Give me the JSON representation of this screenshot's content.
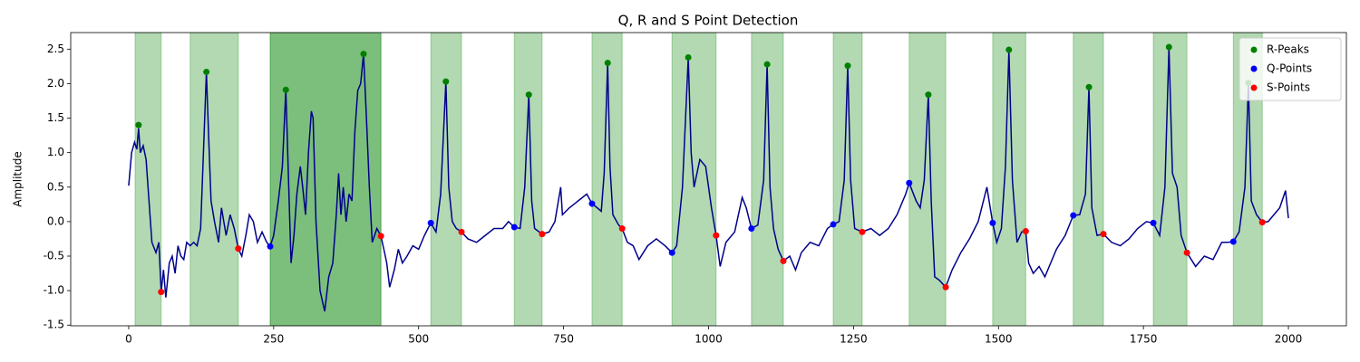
{
  "chart_data": {
    "type": "line",
    "title": "Q, R and S Point Detection",
    "y_label": "Amplitude",
    "xlim": [
      -100,
      2100
    ],
    "ylim": [
      -1.51,
      2.74
    ],
    "xticks": [
      0,
      250,
      500,
      750,
      1000,
      1250,
      1500,
      1750,
      2000
    ],
    "yticks": [
      -1.5,
      {
        "value": -1.0,
        "label": "-1.0"
      },
      -0.5,
      {
        "value": 0.0,
        "label": "0.0"
      },
      0.5,
      {
        "value": 1.0,
        "label": "1.0"
      },
      1.5,
      {
        "value": 2.0,
        "label": "2.0"
      },
      2.5
    ],
    "color": "#00008b",
    "x": [
      0,
      5,
      10,
      14,
      17,
      20,
      25,
      30,
      35,
      40,
      47,
      52,
      56,
      60,
      64,
      70,
      75,
      80,
      85,
      90,
      95,
      100,
      106,
      112,
      118,
      124,
      128,
      134,
      138,
      142,
      148,
      155,
      160,
      168,
      175,
      182,
      189,
      195,
      202,
      208,
      215,
      222,
      230,
      238,
      244,
      250,
      258,
      265,
      271,
      276,
      280,
      285,
      290,
      296,
      300,
      305,
      310,
      315,
      318,
      323,
      330,
      338,
      345,
      352,
      358,
      362,
      366,
      370,
      375,
      380,
      385,
      390,
      395,
      400,
      405,
      410,
      415,
      420,
      428,
      435,
      440,
      445,
      450,
      458,
      465,
      472,
      480,
      490,
      500,
      510,
      521,
      530,
      538,
      547,
      552,
      558,
      565,
      574,
      585,
      600,
      615,
      630,
      645,
      655,
      665,
      675,
      683,
      690,
      695,
      700,
      713,
      725,
      735,
      745,
      748,
      760,
      775,
      790,
      799,
      808,
      815,
      820,
      826,
      830,
      835,
      845,
      851,
      860,
      870,
      880,
      895,
      910,
      925,
      937,
      945,
      955,
      965,
      970,
      975,
      985,
      995,
      1005,
      1013,
      1020,
      1030,
      1045,
      1058,
      1065,
      1074,
      1085,
      1095,
      1101,
      1106,
      1112,
      1120,
      1129,
      1140,
      1150,
      1160,
      1175,
      1190,
      1205,
      1215,
      1225,
      1234,
      1240,
      1245,
      1252,
      1265,
      1280,
      1295,
      1310,
      1325,
      1340,
      1346,
      1358,
      1365,
      1372,
      1379,
      1384,
      1390,
      1398,
      1409,
      1420,
      1435,
      1450,
      1465,
      1480,
      1490,
      1497,
      1505,
      1512,
      1518,
      1524,
      1532,
      1540,
      1547,
      1552,
      1560,
      1570,
      1580,
      1590,
      1600,
      1615,
      1629,
      1640,
      1650,
      1656,
      1661,
      1670,
      1681,
      1695,
      1710,
      1725,
      1740,
      1755,
      1767,
      1778,
      1787,
      1794,
      1800,
      1808,
      1815,
      1825,
      1840,
      1855,
      1870,
      1885,
      1895,
      1905,
      1915,
      1925,
      1931,
      1936,
      1945,
      1955,
      1965,
      1975,
      1985,
      1995,
      2000
    ],
    "values": [
      0.52,
      1.0,
      1.15,
      1.05,
      1.35,
      1.0,
      1.1,
      0.9,
      0.3,
      -0.3,
      -0.45,
      -0.3,
      -1.02,
      -0.7,
      -1.1,
      -0.6,
      -0.5,
      -0.75,
      -0.35,
      -0.5,
      -0.55,
      -0.3,
      -0.35,
      -0.3,
      -0.35,
      -0.1,
      0.8,
      2.17,
      1.2,
      0.3,
      0.0,
      -0.3,
      0.2,
      -0.2,
      0.1,
      -0.1,
      -0.39,
      -0.5,
      -0.2,
      0.1,
      0.0,
      -0.3,
      -0.15,
      -0.3,
      -0.36,
      -0.2,
      0.3,
      0.8,
      1.91,
      0.5,
      -0.6,
      -0.2,
      0.4,
      0.8,
      0.5,
      0.1,
      1.0,
      1.6,
      1.5,
      0.0,
      -1.0,
      -1.3,
      -0.8,
      -0.6,
      0.1,
      0.7,
      0.1,
      0.5,
      0.0,
      0.4,
      0.3,
      1.3,
      1.9,
      2.0,
      2.43,
      1.5,
      0.5,
      -0.3,
      -0.1,
      -0.21,
      -0.4,
      -0.6,
      -0.95,
      -0.7,
      -0.4,
      -0.6,
      -0.5,
      -0.35,
      -0.4,
      -0.2,
      -0.02,
      -0.15,
      0.4,
      2.03,
      0.5,
      0.0,
      -0.1,
      -0.15,
      -0.25,
      -0.3,
      -0.2,
      -0.1,
      -0.1,
      0.0,
      -0.08,
      -0.1,
      0.5,
      1.84,
      0.3,
      -0.1,
      -0.18,
      -0.15,
      0.0,
      0.5,
      0.1,
      0.2,
      0.3,
      0.4,
      0.26,
      0.2,
      0.15,
      0.7,
      2.3,
      0.8,
      0.1,
      -0.05,
      -0.1,
      -0.3,
      -0.35,
      -0.55,
      -0.35,
      -0.25,
      -0.35,
      -0.45,
      -0.35,
      0.5,
      2.38,
      1.0,
      0.5,
      0.9,
      0.8,
      0.2,
      -0.2,
      -0.65,
      -0.3,
      -0.15,
      0.35,
      0.2,
      -0.1,
      -0.05,
      0.6,
      2.28,
      0.5,
      -0.1,
      -0.4,
      -0.57,
      -0.5,
      -0.7,
      -0.45,
      -0.3,
      -0.35,
      -0.1,
      -0.04,
      0.0,
      0.6,
      2.26,
      0.6,
      -0.1,
      -0.15,
      -0.1,
      -0.2,
      -0.1,
      0.1,
      0.4,
      0.56,
      0.3,
      0.2,
      0.6,
      1.84,
      0.3,
      -0.8,
      -0.85,
      -0.95,
      -0.7,
      -0.45,
      -0.25,
      0.0,
      0.5,
      -0.02,
      -0.3,
      -0.1,
      0.8,
      2.49,
      0.6,
      -0.3,
      -0.15,
      -0.14,
      -0.6,
      -0.75,
      -0.65,
      -0.8,
      -0.6,
      -0.4,
      -0.2,
      0.09,
      0.1,
      0.4,
      1.95,
      0.2,
      -0.2,
      -0.18,
      -0.3,
      -0.35,
      -0.25,
      -0.1,
      0.0,
      -0.02,
      -0.2,
      0.5,
      2.53,
      0.7,
      0.5,
      -0.2,
      -0.45,
      -0.65,
      -0.5,
      -0.55,
      -0.3,
      -0.3,
      -0.29,
      -0.15,
      0.5,
      2.01,
      0.3,
      0.1,
      -0.01,
      0.0,
      0.1,
      0.2,
      0.45,
      0.05
    ],
    "span_color": "green",
    "spans": [
      [
        11,
        56
      ],
      [
        106,
        189
      ],
      [
        244,
        435
      ],
      [
        244,
        435
      ],
      [
        521,
        574
      ],
      [
        665,
        713
      ],
      [
        799,
        851
      ],
      [
        937,
        1013
      ],
      [
        1074,
        1129
      ],
      [
        1215,
        1265
      ],
      [
        1346,
        1409
      ],
      [
        1490,
        1547
      ],
      [
        1629,
        1681
      ],
      [
        1767,
        1825
      ],
      [
        1905,
        1955
      ]
    ],
    "series": [
      {
        "name": "R-Peaks",
        "color": "green",
        "type": "scatter",
        "x": [
          17,
          134,
          271,
          405,
          547,
          690,
          826,
          965,
          1101,
          1240,
          1379,
          1518,
          1656,
          1794,
          1931
        ],
        "values": [
          1.4,
          2.17,
          1.91,
          2.43,
          2.03,
          1.84,
          2.3,
          2.38,
          2.28,
          2.26,
          1.84,
          2.49,
          1.95,
          2.53,
          2.01
        ]
      },
      {
        "name": "Q-Points",
        "color": "blue",
        "type": "scatter",
        "x": [
          244,
          521,
          665,
          799,
          937,
          1074,
          1215,
          1346,
          1490,
          1629,
          1767,
          1905
        ],
        "values": [
          -0.36,
          -0.02,
          -0.08,
          0.26,
          -0.45,
          -0.1,
          -0.04,
          0.56,
          -0.02,
          0.09,
          -0.02,
          -0.29
        ]
      },
      {
        "name": "S-Points",
        "color": "red",
        "type": "scatter",
        "x": [
          56,
          189,
          435,
          574,
          713,
          851,
          1013,
          1129,
          1265,
          1409,
          1547,
          1681,
          1825,
          1955
        ],
        "values": [
          -1.02,
          -0.39,
          -0.21,
          -0.15,
          -0.18,
          -0.1,
          -0.2,
          -0.57,
          -0.15,
          -0.95,
          -0.14,
          -0.18,
          -0.45,
          -0.01
        ]
      }
    ],
    "legend": "upper right"
  }
}
